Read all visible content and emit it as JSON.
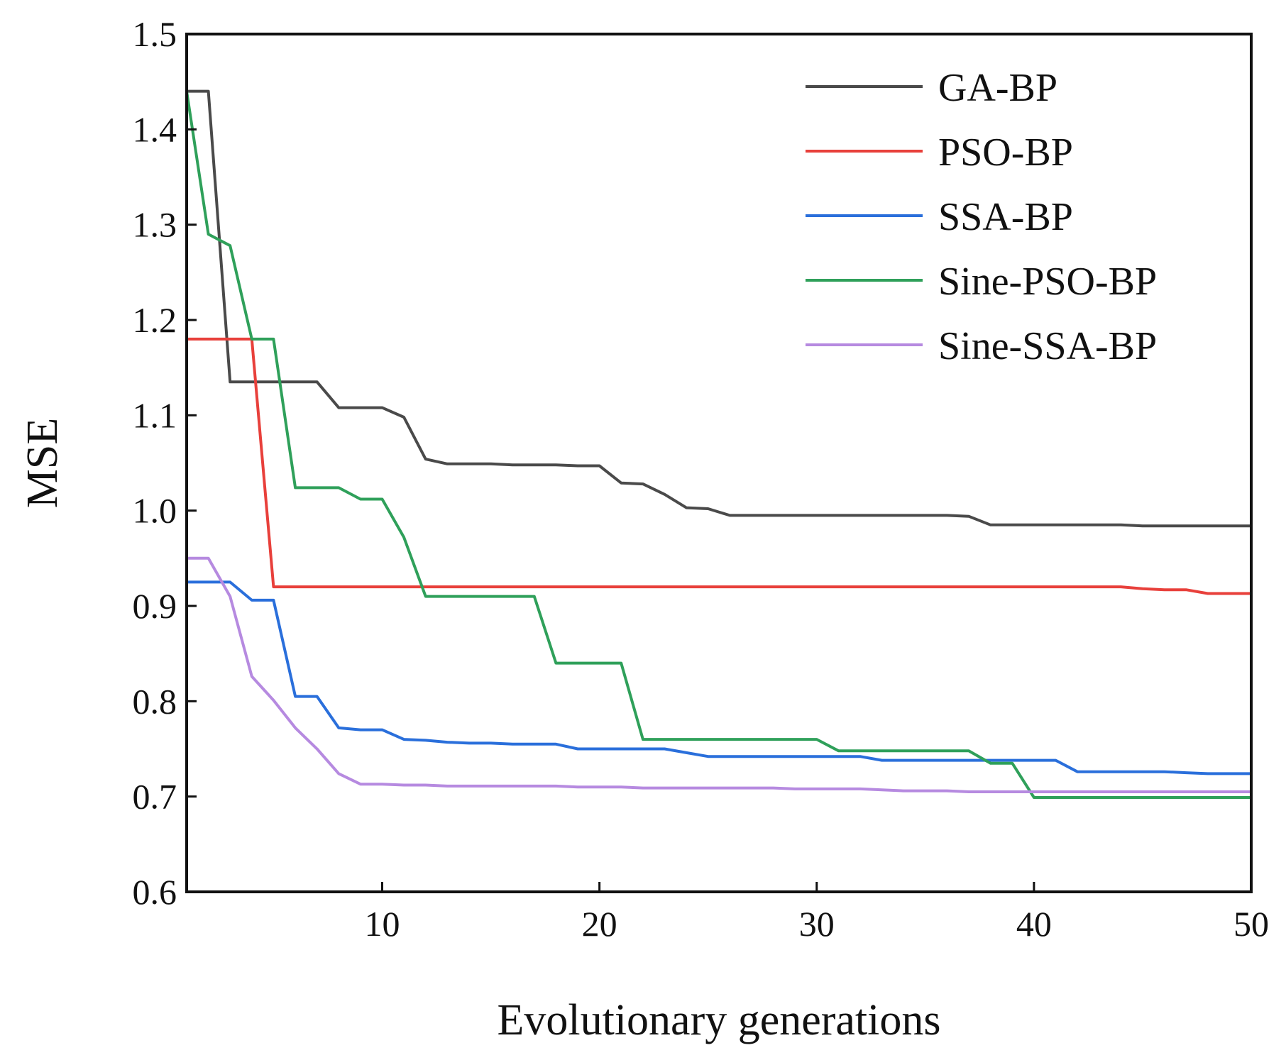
{
  "chart_data": {
    "type": "line",
    "title": "",
    "xlabel": "Evolutionary generations",
    "ylabel": "MSE",
    "xlim": [
      1,
      50
    ],
    "ylim": [
      0.6,
      1.5
    ],
    "xticks": [
      10,
      20,
      30,
      40,
      50
    ],
    "xtick_labels": [
      "10",
      "20",
      "30",
      "40",
      "50"
    ],
    "yticks": [
      0.6,
      0.7,
      0.8,
      0.9,
      1.0,
      1.1,
      1.2,
      1.3,
      1.4,
      1.5
    ],
    "ytick_labels": [
      "0.6",
      "0.7",
      "0.8",
      "0.9",
      "1.0",
      "1.1",
      "1.2",
      "1.3",
      "1.4",
      "1.5"
    ],
    "grid": false,
    "legend_position": "top-right",
    "series": [
      {
        "name": "GA-BP",
        "color": "#4a4a4a",
        "points": [
          [
            1,
            1.44
          ],
          [
            2,
            1.44
          ],
          [
            3,
            1.135
          ],
          [
            4,
            1.135
          ],
          [
            5,
            1.135
          ],
          [
            6,
            1.135
          ],
          [
            7,
            1.135
          ],
          [
            8,
            1.108
          ],
          [
            9,
            1.108
          ],
          [
            10,
            1.108
          ],
          [
            11,
            1.098
          ],
          [
            12,
            1.054
          ],
          [
            13,
            1.049
          ],
          [
            14,
            1.049
          ],
          [
            15,
            1.049
          ],
          [
            16,
            1.048
          ],
          [
            17,
            1.048
          ],
          [
            18,
            1.048
          ],
          [
            19,
            1.047
          ],
          [
            20,
            1.047
          ],
          [
            21,
            1.029
          ],
          [
            22,
            1.028
          ],
          [
            23,
            1.017
          ],
          [
            24,
            1.003
          ],
          [
            25,
            1.002
          ],
          [
            26,
            0.995
          ],
          [
            27,
            0.995
          ],
          [
            28,
            0.995
          ],
          [
            29,
            0.995
          ],
          [
            30,
            0.995
          ],
          [
            31,
            0.995
          ],
          [
            32,
            0.995
          ],
          [
            33,
            0.995
          ],
          [
            34,
            0.995
          ],
          [
            35,
            0.995
          ],
          [
            36,
            0.995
          ],
          [
            37,
            0.994
          ],
          [
            38,
            0.985
          ],
          [
            39,
            0.985
          ],
          [
            40,
            0.985
          ],
          [
            41,
            0.985
          ],
          [
            42,
            0.985
          ],
          [
            43,
            0.985
          ],
          [
            44,
            0.985
          ],
          [
            45,
            0.984
          ],
          [
            46,
            0.984
          ],
          [
            47,
            0.984
          ],
          [
            48,
            0.984
          ],
          [
            49,
            0.984
          ],
          [
            50,
            0.984
          ]
        ]
      },
      {
        "name": "PSO-BP",
        "color": "#e8403b",
        "points": [
          [
            1,
            1.18
          ],
          [
            2,
            1.18
          ],
          [
            3,
            1.18
          ],
          [
            4,
            1.18
          ],
          [
            5,
            0.92
          ],
          [
            6,
            0.92
          ],
          [
            7,
            0.92
          ],
          [
            8,
            0.92
          ],
          [
            9,
            0.92
          ],
          [
            10,
            0.92
          ],
          [
            11,
            0.92
          ],
          [
            12,
            0.92
          ],
          [
            13,
            0.92
          ],
          [
            14,
            0.92
          ],
          [
            15,
            0.92
          ],
          [
            16,
            0.92
          ],
          [
            17,
            0.92
          ],
          [
            18,
            0.92
          ],
          [
            19,
            0.92
          ],
          [
            20,
            0.92
          ],
          [
            21,
            0.92
          ],
          [
            22,
            0.92
          ],
          [
            23,
            0.92
          ],
          [
            24,
            0.92
          ],
          [
            25,
            0.92
          ],
          [
            26,
            0.92
          ],
          [
            27,
            0.92
          ],
          [
            28,
            0.92
          ],
          [
            29,
            0.92
          ],
          [
            30,
            0.92
          ],
          [
            31,
            0.92
          ],
          [
            32,
            0.92
          ],
          [
            33,
            0.92
          ],
          [
            34,
            0.92
          ],
          [
            35,
            0.92
          ],
          [
            36,
            0.92
          ],
          [
            37,
            0.92
          ],
          [
            38,
            0.92
          ],
          [
            39,
            0.92
          ],
          [
            40,
            0.92
          ],
          [
            41,
            0.92
          ],
          [
            42,
            0.92
          ],
          [
            43,
            0.92
          ],
          [
            44,
            0.92
          ],
          [
            45,
            0.918
          ],
          [
            46,
            0.917
          ],
          [
            47,
            0.917
          ],
          [
            48,
            0.913
          ],
          [
            49,
            0.913
          ],
          [
            50,
            0.913
          ]
        ]
      },
      {
        "name": "SSA-BP",
        "color": "#2a6fdb",
        "points": [
          [
            1,
            0.925
          ],
          [
            2,
            0.925
          ],
          [
            3,
            0.925
          ],
          [
            4,
            0.906
          ],
          [
            5,
            0.906
          ],
          [
            6,
            0.805
          ],
          [
            7,
            0.805
          ],
          [
            8,
            0.772
          ],
          [
            9,
            0.77
          ],
          [
            10,
            0.77
          ],
          [
            11,
            0.76
          ],
          [
            12,
            0.759
          ],
          [
            13,
            0.757
          ],
          [
            14,
            0.756
          ],
          [
            15,
            0.756
          ],
          [
            16,
            0.755
          ],
          [
            17,
            0.755
          ],
          [
            18,
            0.755
          ],
          [
            19,
            0.75
          ],
          [
            20,
            0.75
          ],
          [
            21,
            0.75
          ],
          [
            22,
            0.75
          ],
          [
            23,
            0.75
          ],
          [
            24,
            0.746
          ],
          [
            25,
            0.742
          ],
          [
            26,
            0.742
          ],
          [
            27,
            0.742
          ],
          [
            28,
            0.742
          ],
          [
            29,
            0.742
          ],
          [
            30,
            0.742
          ],
          [
            31,
            0.742
          ],
          [
            32,
            0.742
          ],
          [
            33,
            0.738
          ],
          [
            34,
            0.738
          ],
          [
            35,
            0.738
          ],
          [
            36,
            0.738
          ],
          [
            37,
            0.738
          ],
          [
            38,
            0.738
          ],
          [
            39,
            0.738
          ],
          [
            40,
            0.738
          ],
          [
            41,
            0.738
          ],
          [
            42,
            0.726
          ],
          [
            43,
            0.726
          ],
          [
            44,
            0.726
          ],
          [
            45,
            0.726
          ],
          [
            46,
            0.726
          ],
          [
            47,
            0.725
          ],
          [
            48,
            0.724
          ],
          [
            49,
            0.724
          ],
          [
            50,
            0.724
          ]
        ]
      },
      {
        "name": "Sine-PSO-BP",
        "color": "#2fa05a",
        "points": [
          [
            1,
            1.44
          ],
          [
            2,
            1.29
          ],
          [
            3,
            1.278
          ],
          [
            4,
            1.18
          ],
          [
            5,
            1.18
          ],
          [
            6,
            1.024
          ],
          [
            7,
            1.024
          ],
          [
            8,
            1.024
          ],
          [
            9,
            1.012
          ],
          [
            10,
            1.012
          ],
          [
            11,
            0.972
          ],
          [
            12,
            0.91
          ],
          [
            13,
            0.91
          ],
          [
            14,
            0.91
          ],
          [
            15,
            0.91
          ],
          [
            16,
            0.91
          ],
          [
            17,
            0.91
          ],
          [
            18,
            0.84
          ],
          [
            19,
            0.84
          ],
          [
            20,
            0.84
          ],
          [
            21,
            0.84
          ],
          [
            22,
            0.76
          ],
          [
            23,
            0.76
          ],
          [
            24,
            0.76
          ],
          [
            25,
            0.76
          ],
          [
            26,
            0.76
          ],
          [
            27,
            0.76
          ],
          [
            28,
            0.76
          ],
          [
            29,
            0.76
          ],
          [
            30,
            0.76
          ],
          [
            31,
            0.748
          ],
          [
            32,
            0.748
          ],
          [
            33,
            0.748
          ],
          [
            34,
            0.748
          ],
          [
            35,
            0.748
          ],
          [
            36,
            0.748
          ],
          [
            37,
            0.748
          ],
          [
            38,
            0.735
          ],
          [
            39,
            0.735
          ],
          [
            40,
            0.699
          ],
          [
            41,
            0.699
          ],
          [
            42,
            0.699
          ],
          [
            43,
            0.699
          ],
          [
            44,
            0.699
          ],
          [
            45,
            0.699
          ],
          [
            46,
            0.699
          ],
          [
            47,
            0.699
          ],
          [
            48,
            0.699
          ],
          [
            49,
            0.699
          ],
          [
            50,
            0.699
          ]
        ]
      },
      {
        "name": "Sine-SSA-BP",
        "color": "#b68ae0",
        "points": [
          [
            1,
            0.95
          ],
          [
            2,
            0.95
          ],
          [
            3,
            0.91
          ],
          [
            4,
            0.826
          ],
          [
            5,
            0.801
          ],
          [
            6,
            0.772
          ],
          [
            7,
            0.75
          ],
          [
            8,
            0.724
          ],
          [
            9,
            0.713
          ],
          [
            10,
            0.713
          ],
          [
            11,
            0.712
          ],
          [
            12,
            0.712
          ],
          [
            13,
            0.711
          ],
          [
            14,
            0.711
          ],
          [
            15,
            0.711
          ],
          [
            16,
            0.711
          ],
          [
            17,
            0.711
          ],
          [
            18,
            0.711
          ],
          [
            19,
            0.71
          ],
          [
            20,
            0.71
          ],
          [
            21,
            0.71
          ],
          [
            22,
            0.709
          ],
          [
            23,
            0.709
          ],
          [
            24,
            0.709
          ],
          [
            25,
            0.709
          ],
          [
            26,
            0.709
          ],
          [
            27,
            0.709
          ],
          [
            28,
            0.709
          ],
          [
            29,
            0.708
          ],
          [
            30,
            0.708
          ],
          [
            31,
            0.708
          ],
          [
            32,
            0.708
          ],
          [
            33,
            0.707
          ],
          [
            34,
            0.706
          ],
          [
            35,
            0.706
          ],
          [
            36,
            0.706
          ],
          [
            37,
            0.705
          ],
          [
            38,
            0.705
          ],
          [
            39,
            0.705
          ],
          [
            40,
            0.705
          ],
          [
            41,
            0.705
          ],
          [
            42,
            0.705
          ],
          [
            43,
            0.705
          ],
          [
            44,
            0.705
          ],
          [
            45,
            0.705
          ],
          [
            46,
            0.705
          ],
          [
            47,
            0.705
          ],
          [
            48,
            0.705
          ],
          [
            49,
            0.705
          ],
          [
            50,
            0.705
          ]
        ]
      }
    ]
  }
}
